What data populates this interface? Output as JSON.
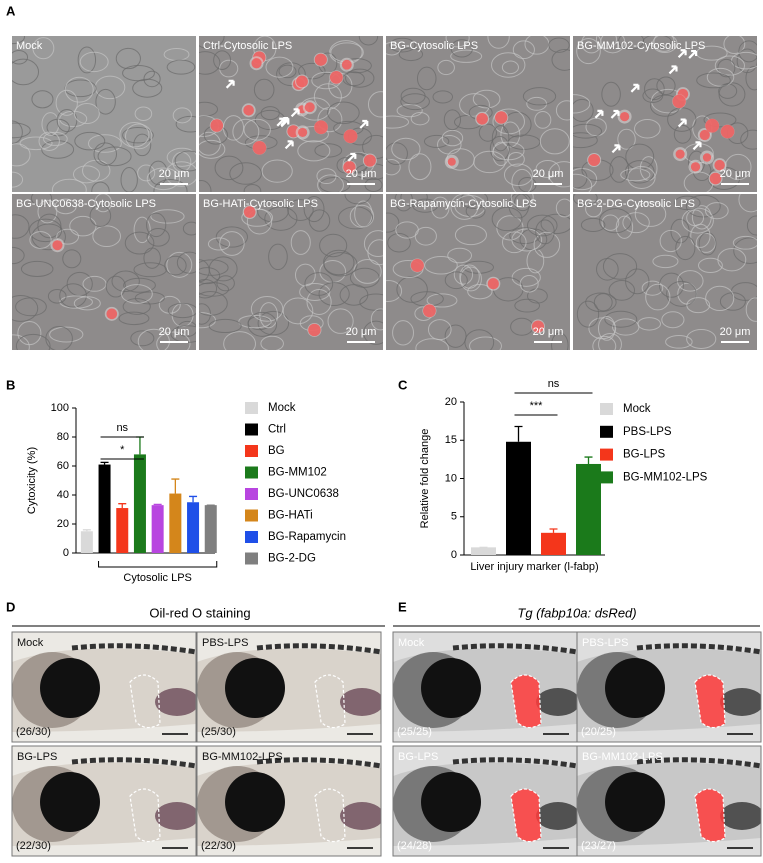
{
  "panels": {
    "A": {
      "label": "A",
      "images": [
        {
          "label": "Mock",
          "scale": "20 μm"
        },
        {
          "label": "Ctrl-Cytosolic LPS",
          "scale": "20 μm"
        },
        {
          "label": "BG-Cytosolic LPS",
          "scale": "20 μm"
        },
        {
          "label": "BG-MM102-Cytosolic LPS",
          "scale": "20 μm"
        },
        {
          "label": "BG-UNC0638-Cytosolic LPS",
          "scale": "20 μm"
        },
        {
          "label": "BG-HATi-Cytosolic LPS",
          "scale": "20 μm"
        },
        {
          "label": "BG-Rapamycin-Cytosolic LPS",
          "scale": "20 μm"
        },
        {
          "label": "BG-2-DG-Cytosolic LPS",
          "scale": "20 μm"
        }
      ]
    },
    "D": {
      "label": "D",
      "title": "Oil-red O staining",
      "images": [
        {
          "label": "Mock",
          "count": "(26/30)"
        },
        {
          "label": "PBS-LPS",
          "count": "(25/30)"
        },
        {
          "label": "BG-LPS",
          "count": "(22/30)"
        },
        {
          "label": "BG-MM102-LPS",
          "count": "(22/30)"
        }
      ]
    },
    "E": {
      "label": "E",
      "title": "Tg (fabp10a: dsRed)",
      "images": [
        {
          "label": "Mock",
          "count": "(25/25)"
        },
        {
          "label": "PBS-LPS",
          "count": "(20/25)"
        },
        {
          "label": "BG-LPS",
          "count": "(24/28)"
        },
        {
          "label": "BG-MM102-LPS",
          "count": "(23/27)"
        }
      ]
    }
  },
  "chart_data": [
    {
      "type": "bar",
      "panel": "B",
      "y_label": "Cytoxicity (%)",
      "categories": [
        "Mock",
        "Ctrl",
        "BG",
        "BG-MM102",
        "BG-UNC0638",
        "BG-HATi",
        "BG-Rapamycin",
        "BG-2-DG"
      ],
      "values": [
        15,
        61,
        31,
        68,
        33,
        41,
        35,
        33
      ],
      "errors": [
        1,
        1.5,
        3,
        12,
        0.5,
        10,
        4,
        0
      ],
      "colors": [
        "#d9d9d9",
        "#000000",
        "#f4361b",
        "#1b7a1b",
        "#b845e0",
        "#d4861b",
        "#1f4fe8",
        "#7f7f7f"
      ],
      "ylim": [
        0,
        100
      ],
      "yticks": [
        0,
        20,
        40,
        60,
        80,
        100
      ],
      "group_label": "Cytosolic LPS",
      "annotations": [
        "ns",
        "*"
      ]
    },
    {
      "type": "bar",
      "panel": "C",
      "y_label": "Relative fold change",
      "x_label": "Liver injury marker (l-fabp)",
      "categories": [
        "Mock",
        "PBS-LPS",
        "BG-LPS",
        "BG-MM102-LPS"
      ],
      "values": [
        1,
        14.8,
        2.9,
        11.9
      ],
      "errors": [
        0,
        2,
        0.5,
        0.9
      ],
      "colors": [
        "#d9d9d9",
        "#000000",
        "#f4361b",
        "#1b7a1b"
      ],
      "ylim": [
        0,
        20
      ],
      "yticks": [
        0,
        5,
        10,
        15,
        20
      ],
      "annotations": [
        "ns",
        "***"
      ]
    }
  ]
}
